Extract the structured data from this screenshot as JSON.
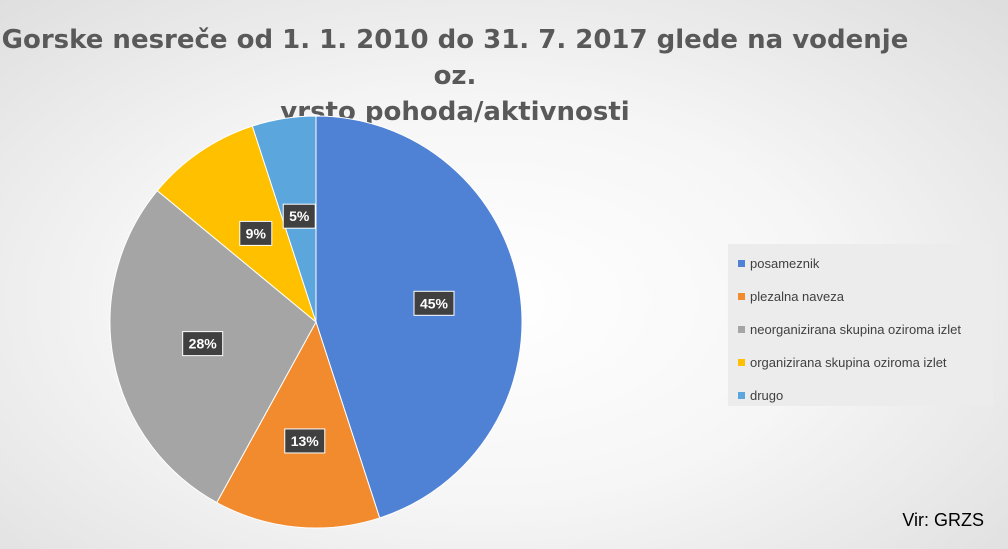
{
  "chart_data": {
    "type": "pie",
    "title": "Gorske nesreče od 1. 1. 2010 do 31. 7. 2017 glede na vodenje oz. vrsto pohoda/aktivnosti",
    "title_lines": [
      "Gorske nesreče od 1. 1. 2010 do 31. 7. 2017 glede na vodenje oz.",
      "vrsto pohoda/aktivnosti"
    ],
    "slices": [
      {
        "label": "posameznik",
        "value": 45,
        "display": "45%",
        "color": "#4f81d5"
      },
      {
        "label": "plezalna naveza",
        "value": 13,
        "display": "13%",
        "color": "#f28a2e"
      },
      {
        "label": "neorganizirana skupina oziroma izlet",
        "value": 28,
        "display": "28%",
        "color": "#a5a5a5"
      },
      {
        "label": "organizirana skupina oziroma izlet",
        "value": 9,
        "display": "9%",
        "color": "#ffc000"
      },
      {
        "label": "drugo",
        "value": 5,
        "display": "5%",
        "color": "#5ba7dd"
      }
    ],
    "legend_position": "right"
  },
  "source": "Vir: GRZS"
}
